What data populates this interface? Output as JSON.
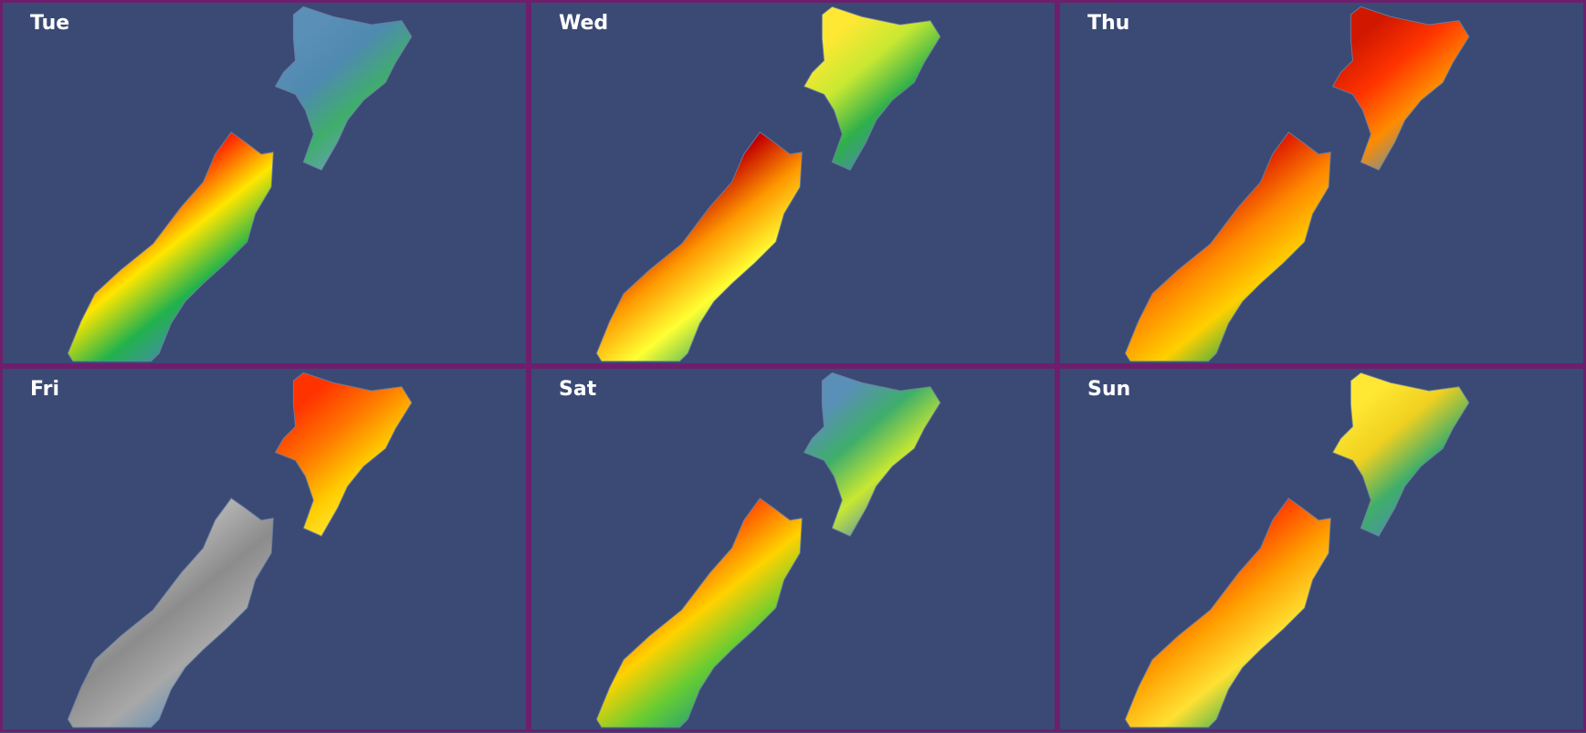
{
  "panels": [
    {
      "label": "Tue"
    },
    {
      "label": "Wed"
    },
    {
      "label": "Thu"
    },
    {
      "label": "Fri"
    },
    {
      "label": "Sat"
    },
    {
      "label": "Sun"
    }
  ]
}
